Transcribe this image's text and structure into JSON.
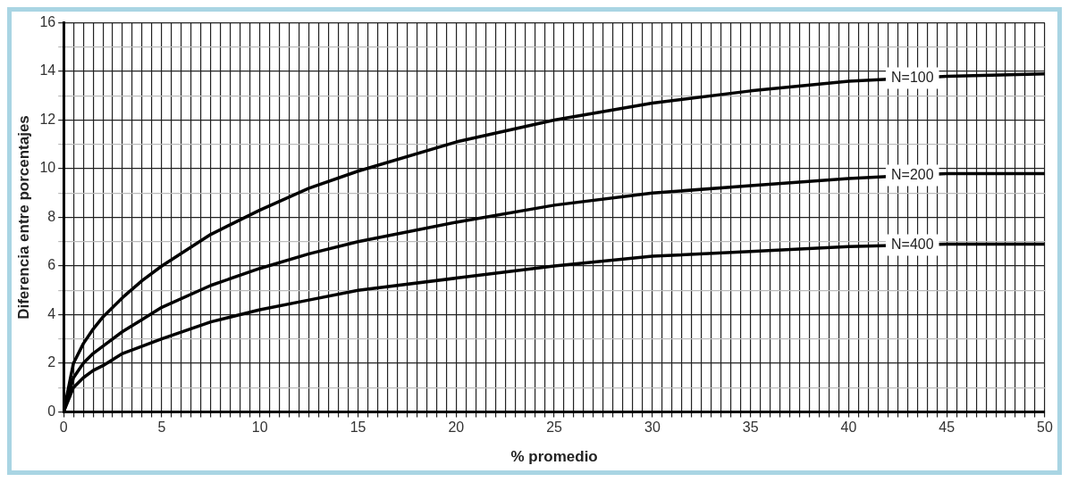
{
  "chart_data": {
    "type": "line",
    "xlabel": "% promedio",
    "ylabel": "Diferencia entre porcentajes",
    "x": [
      0,
      0.5,
      1,
      1.5,
      2,
      3,
      4,
      5,
      7.5,
      10,
      12.5,
      15,
      20,
      25,
      30,
      35,
      40,
      45,
      50
    ],
    "series": [
      {
        "name": "N=100",
        "color": "#000000",
        "values": [
          0,
          2.0,
          2.8,
          3.4,
          3.9,
          4.7,
          5.4,
          6.0,
          7.3,
          8.3,
          9.2,
          9.9,
          11.1,
          12.0,
          12.7,
          13.2,
          13.6,
          13.8,
          13.9
        ]
      },
      {
        "name": "N=200",
        "color": "#000000",
        "values": [
          0,
          1.4,
          2.0,
          2.4,
          2.7,
          3.3,
          3.8,
          4.3,
          5.2,
          5.9,
          6.5,
          7.0,
          7.8,
          8.5,
          9.0,
          9.3,
          9.6,
          9.8,
          9.8
        ]
      },
      {
        "name": "N=400",
        "color": "#000000",
        "values": [
          0,
          1.0,
          1.4,
          1.7,
          1.9,
          2.4,
          2.7,
          3.0,
          3.7,
          4.2,
          4.6,
          5.0,
          5.5,
          6.0,
          6.4,
          6.6,
          6.8,
          6.9,
          6.9
        ]
      }
    ],
    "xlim": [
      0,
      50
    ],
    "ylim": [
      0,
      16
    ],
    "xticks": [
      0,
      {
        "value": 0.5,
        "label": null
      },
      {
        "value": 1,
        "label": null
      },
      {
        "value": 1.5,
        "label": null
      },
      {
        "value": 2,
        "label": null
      },
      {
        "value": 2.5,
        "label": null
      },
      {
        "value": 3,
        "label": null
      },
      {
        "value": 3.5,
        "label": null
      },
      {
        "value": 4,
        "label": null
      },
      {
        "value": 4.5,
        "label": null
      },
      5,
      {
        "value": 5.5,
        "label": null
      },
      {
        "value": 6,
        "label": null
      },
      {
        "value": 6.5,
        "label": null
      },
      {
        "value": 7,
        "label": null
      },
      {
        "value": 7.5,
        "label": null
      },
      {
        "value": 8,
        "label": null
      },
      {
        "value": 8.5,
        "label": null
      },
      {
        "value": 9,
        "label": null
      },
      {
        "value": 9.5,
        "label": null
      },
      10,
      {
        "value": 10.5,
        "label": null
      },
      {
        "value": 11,
        "label": null
      },
      {
        "value": 11.5,
        "label": null
      },
      {
        "value": 12,
        "label": null
      },
      {
        "value": 12.5,
        "label": null
      },
      {
        "value": 13,
        "label": null
      },
      {
        "value": 13.5,
        "label": null
      },
      {
        "value": 14,
        "label": null
      },
      {
        "value": 14.5,
        "label": null
      },
      15,
      {
        "value": 15.5,
        "label": null
      },
      {
        "value": 16,
        "label": null
      },
      {
        "value": 16.5,
        "label": null
      },
      {
        "value": 17,
        "label": null
      },
      {
        "value": 17.5,
        "label": null
      },
      {
        "value": 18,
        "label": null
      },
      {
        "value": 18.5,
        "label": null
      },
      {
        "value": 19,
        "label": null
      },
      {
        "value": 19.5,
        "label": null
      },
      20,
      {
        "value": 20.5,
        "label": null
      },
      {
        "value": 21,
        "label": null
      },
      {
        "value": 21.5,
        "label": null
      },
      {
        "value": 22,
        "label": null
      },
      {
        "value": 22.5,
        "label": null
      },
      {
        "value": 23,
        "label": null
      },
      {
        "value": 23.5,
        "label": null
      },
      {
        "value": 24,
        "label": null
      },
      {
        "value": 24.5,
        "label": null
      },
      25,
      {
        "value": 25.5,
        "label": null
      },
      {
        "value": 26,
        "label": null
      },
      {
        "value": 26.5,
        "label": null
      },
      {
        "value": 27,
        "label": null
      },
      {
        "value": 27.5,
        "label": null
      },
      {
        "value": 28,
        "label": null
      },
      {
        "value": 28.5,
        "label": null
      },
      {
        "value": 29,
        "label": null
      },
      {
        "value": 29.5,
        "label": null
      },
      30,
      {
        "value": 30.5,
        "label": null
      },
      {
        "value": 31,
        "label": null
      },
      {
        "value": 31.5,
        "label": null
      },
      {
        "value": 32,
        "label": null
      },
      {
        "value": 32.5,
        "label": null
      },
      {
        "value": 33,
        "label": null
      },
      {
        "value": 33.5,
        "label": null
      },
      {
        "value": 34,
        "label": null
      },
      {
        "value": 34.5,
        "label": null
      },
      35,
      {
        "value": 35.5,
        "label": null
      },
      {
        "value": 36,
        "label": null
      },
      {
        "value": 36.5,
        "label": null
      },
      {
        "value": 37,
        "label": null
      },
      {
        "value": 37.5,
        "label": null
      },
      {
        "value": 38,
        "label": null
      },
      {
        "value": 38.5,
        "label": null
      },
      {
        "value": 39,
        "label": null
      },
      {
        "value": 39.5,
        "label": null
      },
      40,
      {
        "value": 40.5,
        "label": null
      },
      {
        "value": 41,
        "label": null
      },
      {
        "value": 41.5,
        "label": null
      },
      {
        "value": 42,
        "label": null
      },
      {
        "value": 42.5,
        "label": null
      },
      {
        "value": 43,
        "label": null
      },
      {
        "value": 43.5,
        "label": null
      },
      {
        "value": 44,
        "label": null
      },
      {
        "value": 44.5,
        "label": null
      },
      45,
      {
        "value": 45.5,
        "label": null
      },
      {
        "value": 46,
        "label": null
      },
      {
        "value": 46.5,
        "label": null
      },
      {
        "value": 47,
        "label": null
      },
      {
        "value": 47.5,
        "label": null
      },
      {
        "value": 48,
        "label": null
      },
      {
        "value": 48.5,
        "label": null
      },
      {
        "value": 49,
        "label": null
      },
      {
        "value": 49.5,
        "label": null
      },
      50
    ],
    "yticks": [
      0,
      {
        "value": 1,
        "label": null
      },
      2,
      {
        "value": 3,
        "label": null
      },
      4,
      {
        "value": 5,
        "label": null
      },
      6,
      {
        "value": 7,
        "label": null
      },
      8,
      {
        "value": 9,
        "label": null
      },
      10,
      {
        "value": 11,
        "label": null
      },
      12,
      {
        "value": 13,
        "label": null
      },
      14,
      {
        "value": 15,
        "label": null
      },
      16
    ],
    "grid": true,
    "legend": false,
    "marker": "none",
    "line_style": "solid"
  }
}
